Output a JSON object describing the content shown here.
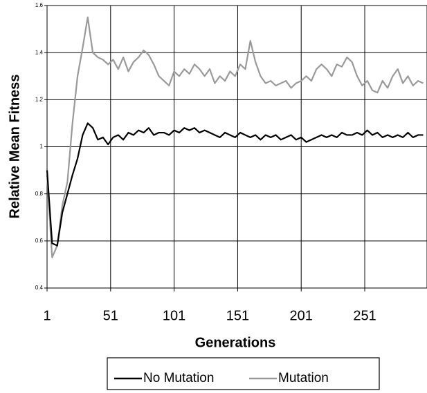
{
  "chart_data": {
    "type": "line",
    "x_label": "Generations",
    "y_label": "Relative Mean Fitness",
    "x": [
      1,
      5,
      9,
      13,
      17,
      21,
      25,
      29,
      33,
      37,
      41,
      45,
      49,
      53,
      57,
      61,
      65,
      69,
      73,
      77,
      81,
      85,
      89,
      93,
      97,
      101,
      105,
      109,
      113,
      117,
      121,
      125,
      129,
      133,
      137,
      141,
      145,
      149,
      153,
      157,
      161,
      165,
      169,
      173,
      177,
      181,
      185,
      189,
      193,
      197,
      201,
      205,
      209,
      213,
      217,
      221,
      225,
      229,
      233,
      237,
      241,
      245,
      249,
      253,
      257,
      261,
      265,
      269,
      273,
      277,
      281,
      285,
      289,
      293,
      297
    ],
    "series": [
      {
        "name": "No Mutation",
        "color": "#000000",
        "values": [
          0.9,
          0.59,
          0.58,
          0.72,
          0.8,
          0.88,
          0.95,
          1.05,
          1.1,
          1.08,
          1.03,
          1.04,
          1.01,
          1.04,
          1.05,
          1.03,
          1.06,
          1.05,
          1.07,
          1.06,
          1.08,
          1.05,
          1.06,
          1.06,
          1.05,
          1.07,
          1.06,
          1.08,
          1.07,
          1.08,
          1.06,
          1.07,
          1.06,
          1.05,
          1.04,
          1.06,
          1.05,
          1.04,
          1.06,
          1.05,
          1.04,
          1.05,
          1.03,
          1.05,
          1.04,
          1.05,
          1.03,
          1.04,
          1.05,
          1.03,
          1.04,
          1.02,
          1.03,
          1.04,
          1.05,
          1.04,
          1.05,
          1.04,
          1.06,
          1.05,
          1.05,
          1.06,
          1.05,
          1.07,
          1.05,
          1.06,
          1.04,
          1.05,
          1.04,
          1.05,
          1.04,
          1.06,
          1.04,
          1.05,
          1.05
        ]
      },
      {
        "name": "Mutation",
        "color": "#999999",
        "values": [
          0.88,
          0.53,
          0.58,
          0.75,
          0.85,
          1.1,
          1.3,
          1.42,
          1.55,
          1.4,
          1.38,
          1.37,
          1.35,
          1.37,
          1.33,
          1.38,
          1.32,
          1.36,
          1.38,
          1.41,
          1.39,
          1.35,
          1.3,
          1.28,
          1.26,
          1.32,
          1.3,
          1.33,
          1.31,
          1.35,
          1.33,
          1.3,
          1.33,
          1.27,
          1.3,
          1.28,
          1.32,
          1.3,
          1.35,
          1.33,
          1.45,
          1.36,
          1.3,
          1.27,
          1.28,
          1.26,
          1.27,
          1.28,
          1.25,
          1.27,
          1.28,
          1.3,
          1.28,
          1.33,
          1.35,
          1.33,
          1.3,
          1.35,
          1.34,
          1.38,
          1.36,
          1.3,
          1.26,
          1.28,
          1.24,
          1.23,
          1.28,
          1.25,
          1.3,
          1.33,
          1.27,
          1.3,
          1.26,
          1.28,
          1.27
        ]
      }
    ],
    "xlim": [
      1,
      300
    ],
    "xticks": [
      1,
      51,
      101,
      151,
      201,
      251
    ],
    "ylim": [
      0.4,
      1.6
    ],
    "yticks": [
      0.4,
      0.6,
      0.8,
      1,
      1.2,
      1.4,
      1.6
    ],
    "grid": true,
    "legend": "bottom"
  }
}
